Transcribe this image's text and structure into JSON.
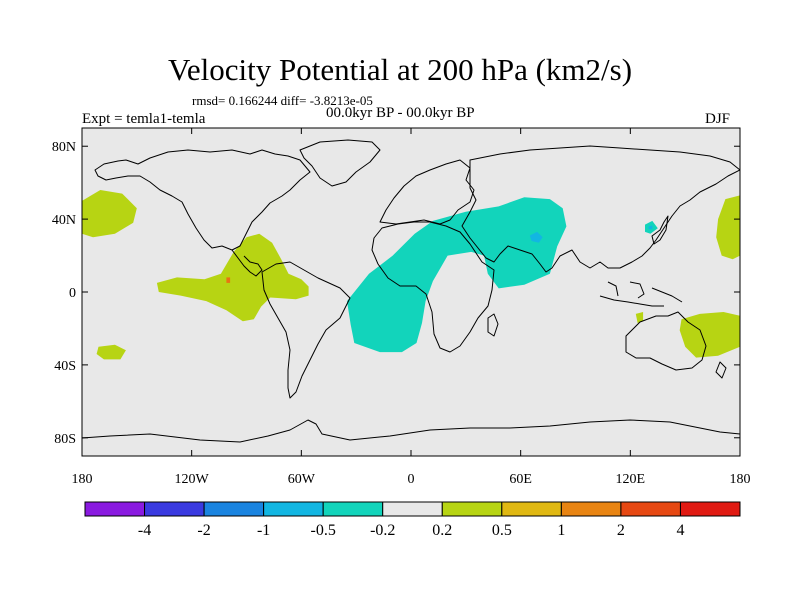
{
  "header": {
    "title": "Velocity Potential at 200 hPa (km2/s)",
    "stats": "rmsd= 0.166244 diff= -3.8213e-05",
    "experiment": "Expt = temla1-temla",
    "period": "00.0kyr BP - 00.0kyr BP",
    "season": "DJF"
  },
  "map": {
    "projection": "cylindrical-equidistant",
    "lon_range": [
      -180,
      180
    ],
    "lat_range": [
      -90,
      90
    ],
    "background_color": "#e8e8e8",
    "lat_ticks": [
      {
        "lat": 80,
        "label": "80N"
      },
      {
        "lat": 40,
        "label": "40N"
      },
      {
        "lat": 0,
        "label": "0"
      },
      {
        "lat": -40,
        "label": "40S"
      },
      {
        "lat": -80,
        "label": "80S"
      }
    ],
    "lon_ticks": [
      {
        "lon": -180,
        "label": "180"
      },
      {
        "lon": -120,
        "label": "120W"
      },
      {
        "lon": -60,
        "label": "60W"
      },
      {
        "lon": 0,
        "label": "0"
      },
      {
        "lon": 60,
        "label": "60E"
      },
      {
        "lon": 120,
        "label": "120E"
      },
      {
        "lon": 180,
        "label": "180"
      }
    ],
    "anomaly_regions": [
      {
        "name": "north-pacific-positive",
        "category": "0.2 to 0.5",
        "color": "#b7d413",
        "outline": [
          [
            -180,
            50
          ],
          [
            -170,
            56
          ],
          [
            -158,
            54
          ],
          [
            -150,
            46
          ],
          [
            -152,
            38
          ],
          [
            -162,
            32
          ],
          [
            -174,
            30
          ],
          [
            -180,
            32
          ]
        ]
      },
      {
        "name": "central-pacific-america-positive",
        "category": "0.2 to 0.5",
        "color": "#b7d413",
        "outline": [
          [
            -139,
            5
          ],
          [
            -128,
            8
          ],
          [
            -113,
            7
          ],
          [
            -104,
            10
          ],
          [
            -97,
            22
          ],
          [
            -90,
            30
          ],
          [
            -83,
            32
          ],
          [
            -76,
            27
          ],
          [
            -71,
            18
          ],
          [
            -67,
            10
          ],
          [
            -60,
            7
          ],
          [
            -56,
            3
          ],
          [
            -56,
            -2
          ],
          [
            -63,
            -4
          ],
          [
            -77,
            -3
          ],
          [
            -82,
            -8
          ],
          [
            -86,
            -15
          ],
          [
            -92,
            -16
          ],
          [
            -101,
            -10
          ],
          [
            -112,
            -5
          ],
          [
            -126,
            -2
          ],
          [
            -138,
            0
          ]
        ]
      },
      {
        "name": "south-pacific-positive",
        "category": "0.2 to 0.5",
        "color": "#b7d413",
        "outline": [
          [
            -171,
            -30
          ],
          [
            -162,
            -29
          ],
          [
            -156,
            -32
          ],
          [
            -159,
            -37
          ],
          [
            -168,
            -37
          ],
          [
            -172,
            -34
          ]
        ]
      },
      {
        "name": "africa-asia-negative",
        "category": "-0.5 to -0.2",
        "color": "#12d4bb",
        "outline": [
          [
            -33,
            -18
          ],
          [
            -35,
            -5
          ],
          [
            -23,
            10
          ],
          [
            -10,
            20
          ],
          [
            2,
            32
          ],
          [
            12,
            39
          ],
          [
            30,
            44
          ],
          [
            48,
            47
          ],
          [
            62,
            52
          ],
          [
            76,
            51
          ],
          [
            83,
            46
          ],
          [
            85,
            36
          ],
          [
            80,
            25
          ],
          [
            76,
            10
          ],
          [
            62,
            4
          ],
          [
            48,
            2
          ],
          [
            42,
            10
          ],
          [
            40,
            20
          ],
          [
            33,
            22
          ],
          [
            20,
            20
          ],
          [
            12,
            6
          ],
          [
            8,
            -5
          ],
          [
            6,
            -17
          ],
          [
            3,
            -28
          ],
          [
            -5,
            -33
          ],
          [
            -17,
            -33
          ],
          [
            -31,
            -28
          ]
        ]
      },
      {
        "name": "africa-asia-negative-core",
        "category": "-1 to -0.5",
        "color": "#12b6e2",
        "outline": [
          [
            65,
            31
          ],
          [
            69,
            33
          ],
          [
            72,
            30
          ],
          [
            70,
            27
          ],
          [
            66,
            28
          ]
        ]
      },
      {
        "name": "japan-negative",
        "category": "-0.5 to -0.2",
        "color": "#12d4bb",
        "outline": [
          [
            128,
            37
          ],
          [
            132,
            39
          ],
          [
            135,
            35
          ],
          [
            131,
            32
          ],
          [
            128,
            33
          ]
        ]
      },
      {
        "name": "japan-negative-core",
        "category": "-1 to -0.5",
        "color": "#12b6e2",
        "outline": [
          [
            130,
            36
          ],
          [
            132,
            36.5
          ],
          [
            132,
            34.5
          ],
          [
            130,
            34.5
          ]
        ]
      },
      {
        "name": "australia-positive",
        "category": "0.2 to 0.5",
        "color": "#b7d413",
        "outline": [
          [
            148,
            -15
          ],
          [
            158,
            -12
          ],
          [
            171,
            -11
          ],
          [
            180,
            -13
          ],
          [
            180,
            -30
          ],
          [
            168,
            -35
          ],
          [
            156,
            -36
          ],
          [
            150,
            -30
          ],
          [
            147,
            -21
          ]
        ]
      },
      {
        "name": "east-pacific-edge-positive",
        "category": "0.2 to 0.5",
        "color": "#b7d413",
        "outline": [
          [
            180,
            53
          ],
          [
            172,
            51
          ],
          [
            168,
            40
          ],
          [
            167,
            30
          ],
          [
            170,
            20
          ],
          [
            176,
            18
          ],
          [
            180,
            20
          ]
        ]
      },
      {
        "name": "indonesia-small-positive",
        "category": "0.2 to 0.5",
        "color": "#b7d413",
        "outline": [
          [
            123,
            -12
          ],
          [
            127,
            -11
          ],
          [
            127,
            -16
          ],
          [
            124,
            -17
          ]
        ]
      },
      {
        "name": "east-pacific-spot",
        "category": "1 to 2",
        "color": "#e87412",
        "outline": [
          [
            -101,
            8
          ],
          [
            -99,
            8
          ],
          [
            -99,
            5
          ],
          [
            -101,
            5
          ]
        ]
      }
    ]
  },
  "colorbar": {
    "colors": [
      "#8a1ae0",
      "#3a3ae0",
      "#1a84e0",
      "#12b6e2",
      "#12d4bb",
      "#e8e8e8",
      "#b7d413",
      "#e0b812",
      "#e88412",
      "#e64812",
      "#e01a12"
    ],
    "labels": [
      "-4",
      "-2",
      "-1",
      "-0.5",
      "-0.2",
      "0.2",
      "0.5",
      "1",
      "2",
      "4"
    ]
  }
}
